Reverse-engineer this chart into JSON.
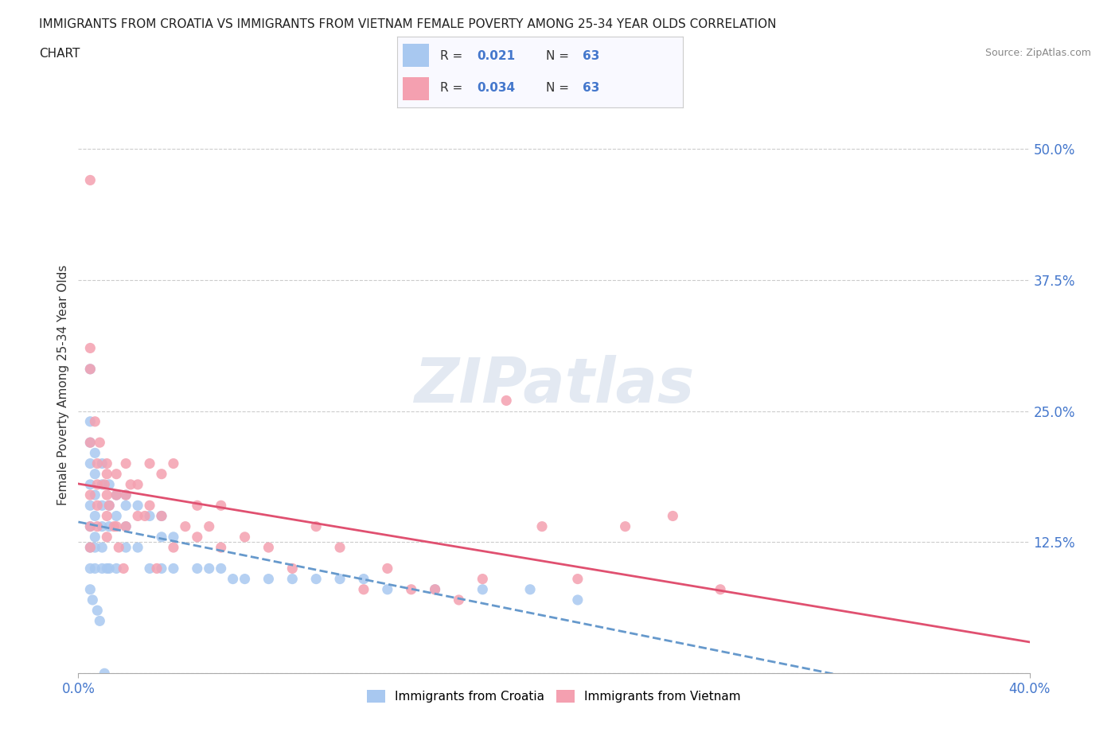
{
  "title_line1": "IMMIGRANTS FROM CROATIA VS IMMIGRANTS FROM VIETNAM FEMALE POVERTY AMONG 25-34 YEAR OLDS CORRELATION",
  "title_line2": "CHART",
  "source_text": "Source: ZipAtlas.com",
  "ylabel": "Female Poverty Among 25-34 Year Olds",
  "xlim": [
    0.0,
    0.4
  ],
  "ylim": [
    0.0,
    0.55
  ],
  "yticks": [
    0.0,
    0.125,
    0.25,
    0.375,
    0.5
  ],
  "ytick_labels": [
    "",
    "12.5%",
    "25.0%",
    "37.5%",
    "50.0%"
  ],
  "legend_labels": [
    "Immigrants from Croatia",
    "Immigrants from Vietnam"
  ],
  "legend_r_croatia": "0.021",
  "legend_n_croatia": "63",
  "legend_r_vietnam": "0.034",
  "legend_n_vietnam": "63",
  "color_croatia": "#a8c8f0",
  "color_vietnam": "#f4a0b0",
  "trendline_croatia_color": "#6699cc",
  "trendline_vietnam_color": "#e05070",
  "watermark": "ZIPatlas",
  "background_color": "#ffffff",
  "tick_color": "#4477cc",
  "croatia_x": [
    0.005,
    0.005,
    0.005,
    0.005,
    0.005,
    0.005,
    0.005,
    0.005,
    0.005,
    0.007,
    0.007,
    0.007,
    0.007,
    0.007,
    0.007,
    0.007,
    0.01,
    0.01,
    0.01,
    0.01,
    0.01,
    0.01,
    0.013,
    0.013,
    0.013,
    0.013,
    0.016,
    0.016,
    0.016,
    0.02,
    0.02,
    0.02,
    0.02,
    0.025,
    0.025,
    0.03,
    0.03,
    0.035,
    0.035,
    0.035,
    0.04,
    0.04,
    0.05,
    0.055,
    0.06,
    0.065,
    0.07,
    0.08,
    0.09,
    0.1,
    0.11,
    0.12,
    0.13,
    0.15,
    0.17,
    0.19,
    0.21,
    0.005,
    0.006,
    0.008,
    0.009,
    0.011,
    0.012
  ],
  "croatia_y": [
    0.29,
    0.24,
    0.22,
    0.2,
    0.18,
    0.16,
    0.14,
    0.12,
    0.1,
    0.21,
    0.19,
    0.17,
    0.15,
    0.13,
    0.12,
    0.1,
    0.2,
    0.18,
    0.16,
    0.14,
    0.12,
    0.1,
    0.18,
    0.16,
    0.14,
    0.1,
    0.17,
    0.15,
    0.1,
    0.17,
    0.16,
    0.14,
    0.12,
    0.16,
    0.12,
    0.15,
    0.1,
    0.15,
    0.13,
    0.1,
    0.13,
    0.1,
    0.1,
    0.1,
    0.1,
    0.09,
    0.09,
    0.09,
    0.09,
    0.09,
    0.09,
    0.09,
    0.08,
    0.08,
    0.08,
    0.08,
    0.07,
    0.08,
    0.07,
    0.06,
    0.05,
    0.0,
    0.1
  ],
  "vietnam_x": [
    0.005,
    0.005,
    0.005,
    0.005,
    0.005,
    0.005,
    0.008,
    0.008,
    0.008,
    0.008,
    0.012,
    0.012,
    0.012,
    0.012,
    0.012,
    0.016,
    0.016,
    0.016,
    0.02,
    0.02,
    0.02,
    0.025,
    0.025,
    0.03,
    0.03,
    0.035,
    0.035,
    0.04,
    0.04,
    0.05,
    0.05,
    0.06,
    0.06,
    0.07,
    0.08,
    0.09,
    0.1,
    0.11,
    0.12,
    0.13,
    0.14,
    0.15,
    0.16,
    0.17,
    0.18,
    0.195,
    0.21,
    0.23,
    0.25,
    0.27,
    0.005,
    0.007,
    0.009,
    0.011,
    0.013,
    0.015,
    0.017,
    0.019,
    0.022,
    0.028,
    0.033,
    0.045,
    0.055
  ],
  "vietnam_y": [
    0.47,
    0.29,
    0.22,
    0.17,
    0.14,
    0.12,
    0.2,
    0.18,
    0.16,
    0.14,
    0.2,
    0.19,
    0.17,
    0.15,
    0.13,
    0.19,
    0.17,
    0.14,
    0.2,
    0.17,
    0.14,
    0.18,
    0.15,
    0.2,
    0.16,
    0.19,
    0.15,
    0.2,
    0.12,
    0.16,
    0.13,
    0.16,
    0.12,
    0.13,
    0.12,
    0.1,
    0.14,
    0.12,
    0.08,
    0.1,
    0.08,
    0.08,
    0.07,
    0.09,
    0.26,
    0.14,
    0.09,
    0.14,
    0.15,
    0.08,
    0.31,
    0.24,
    0.22,
    0.18,
    0.16,
    0.14,
    0.12,
    0.1,
    0.18,
    0.15,
    0.1,
    0.14,
    0.14
  ]
}
